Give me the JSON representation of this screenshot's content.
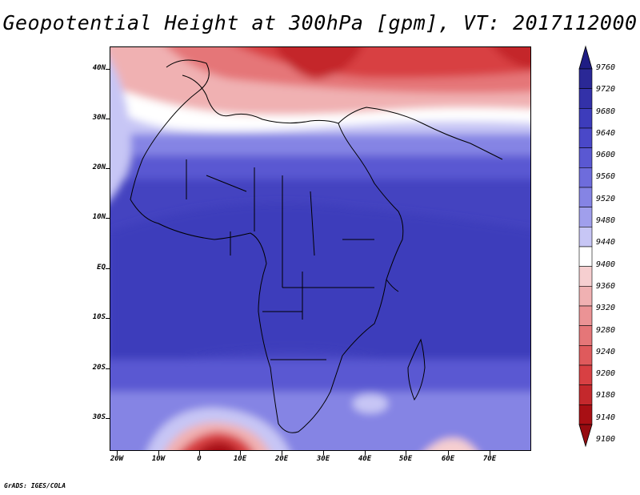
{
  "header": {
    "title": "Geopotential Height at 300hPa [gpm], VT: 2017112000"
  },
  "axes": {
    "y_ticks": [
      "40N",
      "30N",
      "20N",
      "10N",
      "EQ",
      "10S",
      "20S",
      "30S"
    ],
    "x_ticks": [
      "20W",
      "10W",
      "0",
      "10E",
      "20E",
      "30E",
      "40E",
      "50E",
      "60E",
      "70E"
    ]
  },
  "colorbar": {
    "labels": [
      "9760",
      "9720",
      "9680",
      "9640",
      "9600",
      "9560",
      "9520",
      "9480",
      "9440",
      "9400",
      "9360",
      "9320",
      "9280",
      "9240",
      "9200",
      "9180",
      "9140",
      "9100"
    ],
    "colors": [
      "#2a2896",
      "#3331a8",
      "#3d3cbb",
      "#4a48c8",
      "#5a58d2",
      "#6e6cdc",
      "#8584e4",
      "#a09fec",
      "#c7c6f5",
      "#ffffff",
      "#f6cfd0",
      "#f0b1b2",
      "#eb9395",
      "#e57678",
      "#df5a5c",
      "#d84043",
      "#c4282c",
      "#a80f14"
    ],
    "top_arrow_color": "#1f1d84",
    "bottom_arrow_color": "#960b10"
  },
  "footer": {
    "credit": "GrADS: IGES/COLA"
  }
}
